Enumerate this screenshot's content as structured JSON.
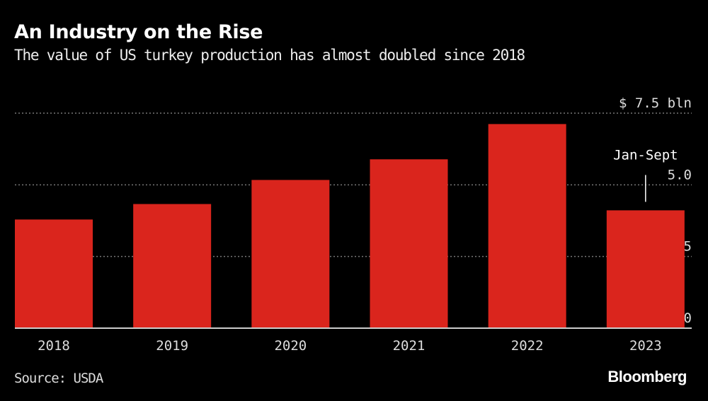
{
  "title": "An Industry on the Rise",
  "subtitle": "The value of US turkey production has almost doubled since 2018",
  "source": "Source: USDA",
  "logo": "Bloomberg",
  "chart_data": {
    "type": "bar",
    "categories": [
      "2018",
      "2019",
      "2020",
      "2021",
      "2022",
      "2023"
    ],
    "values": [
      3.79,
      4.33,
      5.17,
      5.89,
      7.12,
      4.11
    ],
    "ylim": [
      0,
      7.5
    ],
    "yticks": [
      0,
      2.5,
      5.0,
      7.5
    ],
    "ytick_labels": [
      "0",
      "2.5",
      "5.0",
      "$ 7.5 bln"
    ],
    "y_axis_position": "right",
    "grid": true,
    "bar_color": "#da251d",
    "annotation": {
      "category": "2023",
      "text": "Jan-Sept"
    }
  }
}
